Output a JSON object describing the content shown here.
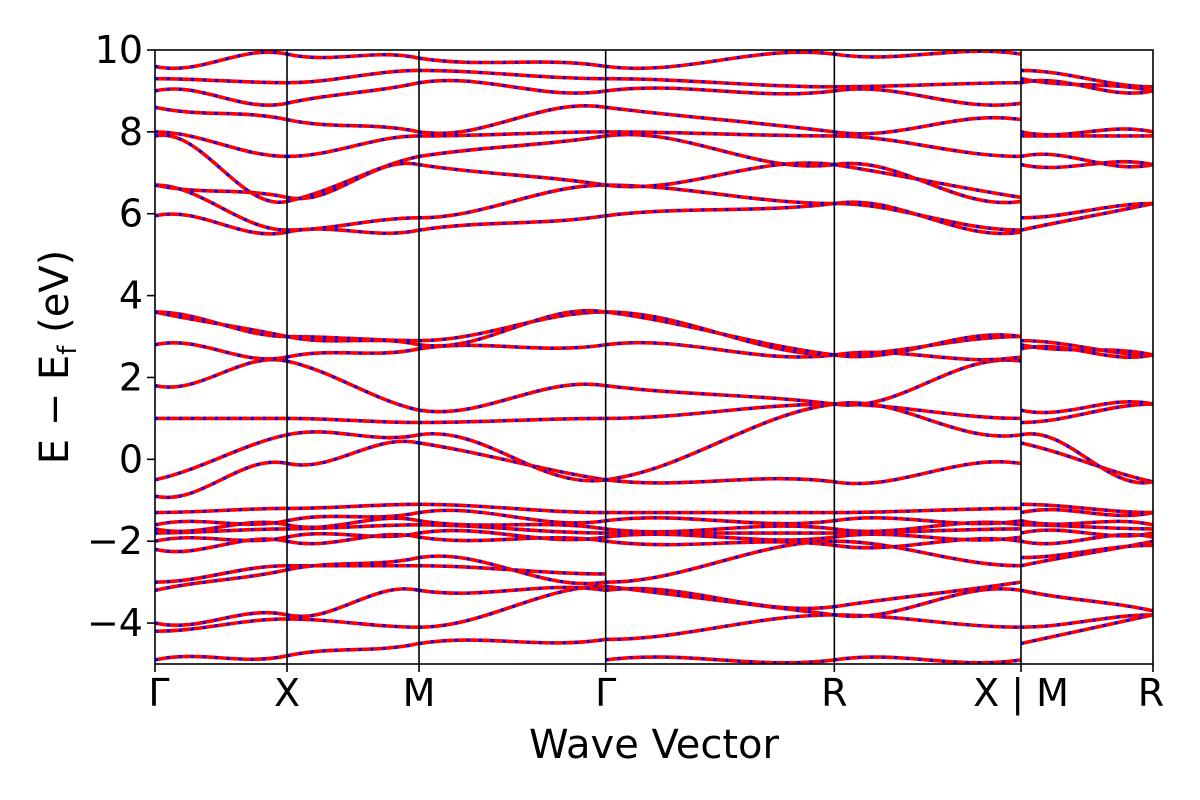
{
  "chart_data": {
    "type": "line",
    "xlabel": "Wave Vector",
    "ylabel_main": "E − E",
    "ylabel_sub": "f",
    "ylabel_unit": "(eV)",
    "ylim": [
      -5,
      10
    ],
    "yticks": [
      -4,
      -2,
      0,
      2,
      4,
      6,
      8,
      10
    ],
    "ytick_labels": [
      "−4",
      "−2",
      "0",
      "2",
      "4",
      "6",
      "8",
      "10"
    ],
    "kpoints": [
      {
        "label": "Γ",
        "x": 0.0
      },
      {
        "label": "X",
        "x": 0.5
      },
      {
        "label": "M",
        "x": 1.0
      },
      {
        "label": "Γ",
        "x": 1.707
      },
      {
        "label": "R",
        "x": 2.573
      },
      {
        "label": "X | M",
        "x": 3.28
      },
      {
        "label": "R",
        "x": 3.78
      }
    ],
    "xlim": [
      0.0,
      3.78
    ],
    "grid": false,
    "line_colors": [
      "#ff0000",
      "#0000ff"
    ],
    "line_styles": [
      "solid red",
      "dotted blue overlay"
    ],
    "segments": [
      {
        "from": "Γ",
        "to": "X",
        "bands": [
          [
            -4.9,
            -4.8
          ],
          [
            -4.2,
            -3.9
          ],
          [
            -4.0,
            -3.8
          ],
          [
            -3.2,
            -2.7
          ],
          [
            -3.0,
            -2.6
          ],
          [
            -2.2,
            -2.0
          ],
          [
            -2.0,
            -1.9
          ],
          [
            -1.8,
            -1.7
          ],
          [
            -1.7,
            -1.6
          ],
          [
            -1.6,
            -1.5
          ],
          [
            -1.3,
            -1.2
          ],
          [
            -0.9,
            -0.1
          ],
          [
            -0.5,
            0.6
          ],
          [
            1.0,
            1.0
          ],
          [
            1.8,
            2.4
          ],
          [
            2.8,
            2.5
          ],
          [
            3.6,
            3.0
          ],
          [
            3.6,
            3.0
          ],
          [
            5.95,
            5.55
          ],
          [
            6.7,
            5.6
          ],
          [
            6.7,
            6.4
          ],
          [
            7.9,
            6.3
          ],
          [
            8.0,
            7.4
          ],
          [
            8.6,
            8.3
          ],
          [
            9.0,
            8.7
          ],
          [
            9.3,
            9.2
          ],
          [
            9.6,
            9.9
          ]
        ]
      },
      {
        "from": "X",
        "to": "M",
        "bands": [
          [
            -4.8,
            -4.5
          ],
          [
            -3.9,
            -4.1
          ],
          [
            -3.8,
            -3.2
          ],
          [
            -2.7,
            -2.4
          ],
          [
            -2.6,
            -2.6
          ],
          [
            -2.0,
            -1.9
          ],
          [
            -1.9,
            -1.8
          ],
          [
            -1.7,
            -1.6
          ],
          [
            -1.6,
            -1.5
          ],
          [
            -1.5,
            -1.3
          ],
          [
            -1.2,
            -1.1
          ],
          [
            -0.1,
            0.4
          ],
          [
            0.6,
            0.6
          ],
          [
            1.0,
            0.9
          ],
          [
            2.4,
            1.2
          ],
          [
            2.5,
            2.7
          ],
          [
            3.0,
            2.9
          ],
          [
            3.0,
            2.8
          ],
          [
            5.55,
            5.6
          ],
          [
            5.6,
            5.9
          ],
          [
            6.4,
            7.2
          ],
          [
            6.3,
            7.4
          ],
          [
            7.4,
            7.9
          ],
          [
            8.3,
            8.0
          ],
          [
            8.7,
            9.2
          ],
          [
            9.2,
            9.5
          ],
          [
            9.9,
            9.8
          ]
        ]
      },
      {
        "from": "M",
        "to": "Γ",
        "bands": [
          [
            -4.5,
            -4.4
          ],
          [
            -4.1,
            -3.1
          ],
          [
            -3.2,
            -3.2
          ],
          [
            -2.4,
            -3.0
          ],
          [
            -2.6,
            -2.8
          ],
          [
            -1.9,
            -2.0
          ],
          [
            -1.8,
            -1.9
          ],
          [
            -1.6,
            -1.8
          ],
          [
            -1.5,
            -1.7
          ],
          [
            -1.3,
            -1.5
          ],
          [
            -1.1,
            -1.3
          ],
          [
            0.4,
            -0.5
          ],
          [
            0.6,
            -0.5
          ],
          [
            0.9,
            1.0
          ],
          [
            1.2,
            1.8
          ],
          [
            2.7,
            2.8
          ],
          [
            2.9,
            3.6
          ],
          [
            2.8,
            3.6
          ],
          [
            5.6,
            5.95
          ],
          [
            5.9,
            6.7
          ],
          [
            7.2,
            6.7
          ],
          [
            7.4,
            7.9
          ],
          [
            7.9,
            8.0
          ],
          [
            8.0,
            8.6
          ],
          [
            9.2,
            9.0
          ],
          [
            9.5,
            9.3
          ],
          [
            9.8,
            9.6
          ]
        ]
      },
      {
        "from": "Γ",
        "to": "R",
        "bands": [
          [
            -4.9,
            -4.9
          ],
          [
            -4.4,
            -3.8
          ],
          [
            -3.1,
            -3.8
          ],
          [
            -3.2,
            -3.6
          ],
          [
            -3.0,
            -2.0
          ],
          [
            -2.0,
            -2.1
          ],
          [
            -1.9,
            -1.9
          ],
          [
            -1.8,
            -1.8
          ],
          [
            -1.7,
            -1.7
          ],
          [
            -1.5,
            -1.5
          ],
          [
            -1.3,
            -1.3
          ],
          [
            -0.5,
            -0.55
          ],
          [
            -0.5,
            1.35
          ],
          [
            1.0,
            1.35
          ],
          [
            1.8,
            1.35
          ],
          [
            2.8,
            2.55
          ],
          [
            3.6,
            2.55
          ],
          [
            3.6,
            2.55
          ],
          [
            5.95,
            6.25
          ],
          [
            6.7,
            6.25
          ],
          [
            6.7,
            7.2
          ],
          [
            7.9,
            7.2
          ],
          [
            8.0,
            7.9
          ],
          [
            8.6,
            8.0
          ],
          [
            9.0,
            9.0
          ],
          [
            9.3,
            9.1
          ],
          [
            9.6,
            9.9
          ]
        ]
      },
      {
        "from": "R",
        "to": "X",
        "bands": [
          [
            -4.9,
            -4.9
          ],
          [
            -3.8,
            -4.1
          ],
          [
            -3.8,
            -3.2
          ],
          [
            -3.6,
            -3.0
          ],
          [
            -2.0,
            -2.6
          ],
          [
            -2.1,
            -2.0
          ],
          [
            -1.9,
            -1.9
          ],
          [
            -1.8,
            -1.7
          ],
          [
            -1.7,
            -1.6
          ],
          [
            -1.5,
            -1.5
          ],
          [
            -1.3,
            -1.2
          ],
          [
            -0.55,
            -0.1
          ],
          [
            1.35,
            0.6
          ],
          [
            1.35,
            1.0
          ],
          [
            1.35,
            2.4
          ],
          [
            2.55,
            2.5
          ],
          [
            2.55,
            3.0
          ],
          [
            2.55,
            3.0
          ],
          [
            6.25,
            5.55
          ],
          [
            6.25,
            5.6
          ],
          [
            7.2,
            6.4
          ],
          [
            7.2,
            6.3
          ],
          [
            7.9,
            7.4
          ],
          [
            8.0,
            8.3
          ],
          [
            9.0,
            8.7
          ],
          [
            9.1,
            9.2
          ],
          [
            9.9,
            9.9
          ]
        ]
      },
      {
        "from": "M",
        "to": "R",
        "bands": [
          [
            -4.5,
            -3.8
          ],
          [
            -4.1,
            -3.8
          ],
          [
            -3.2,
            -3.7
          ],
          [
            -2.6,
            -2.0
          ],
          [
            -2.4,
            -2.1
          ],
          [
            -2.0,
            -1.9
          ],
          [
            -1.8,
            -1.8
          ],
          [
            -1.6,
            -1.7
          ],
          [
            -1.5,
            -1.6
          ],
          [
            -1.3,
            -1.3
          ],
          [
            -1.1,
            -1.3
          ],
          [
            0.4,
            -0.55
          ],
          [
            0.6,
            -0.55
          ],
          [
            0.9,
            1.35
          ],
          [
            1.2,
            1.35
          ],
          [
            2.7,
            2.55
          ],
          [
            2.9,
            2.55
          ],
          [
            2.8,
            2.55
          ],
          [
            5.6,
            6.25
          ],
          [
            5.9,
            6.25
          ],
          [
            7.2,
            7.2
          ],
          [
            7.4,
            7.2
          ],
          [
            7.9,
            7.9
          ],
          [
            8.0,
            8.0
          ],
          [
            9.2,
            9.0
          ],
          [
            9.5,
            9.1
          ],
          [
            9.3,
            9.0
          ]
        ]
      }
    ]
  }
}
